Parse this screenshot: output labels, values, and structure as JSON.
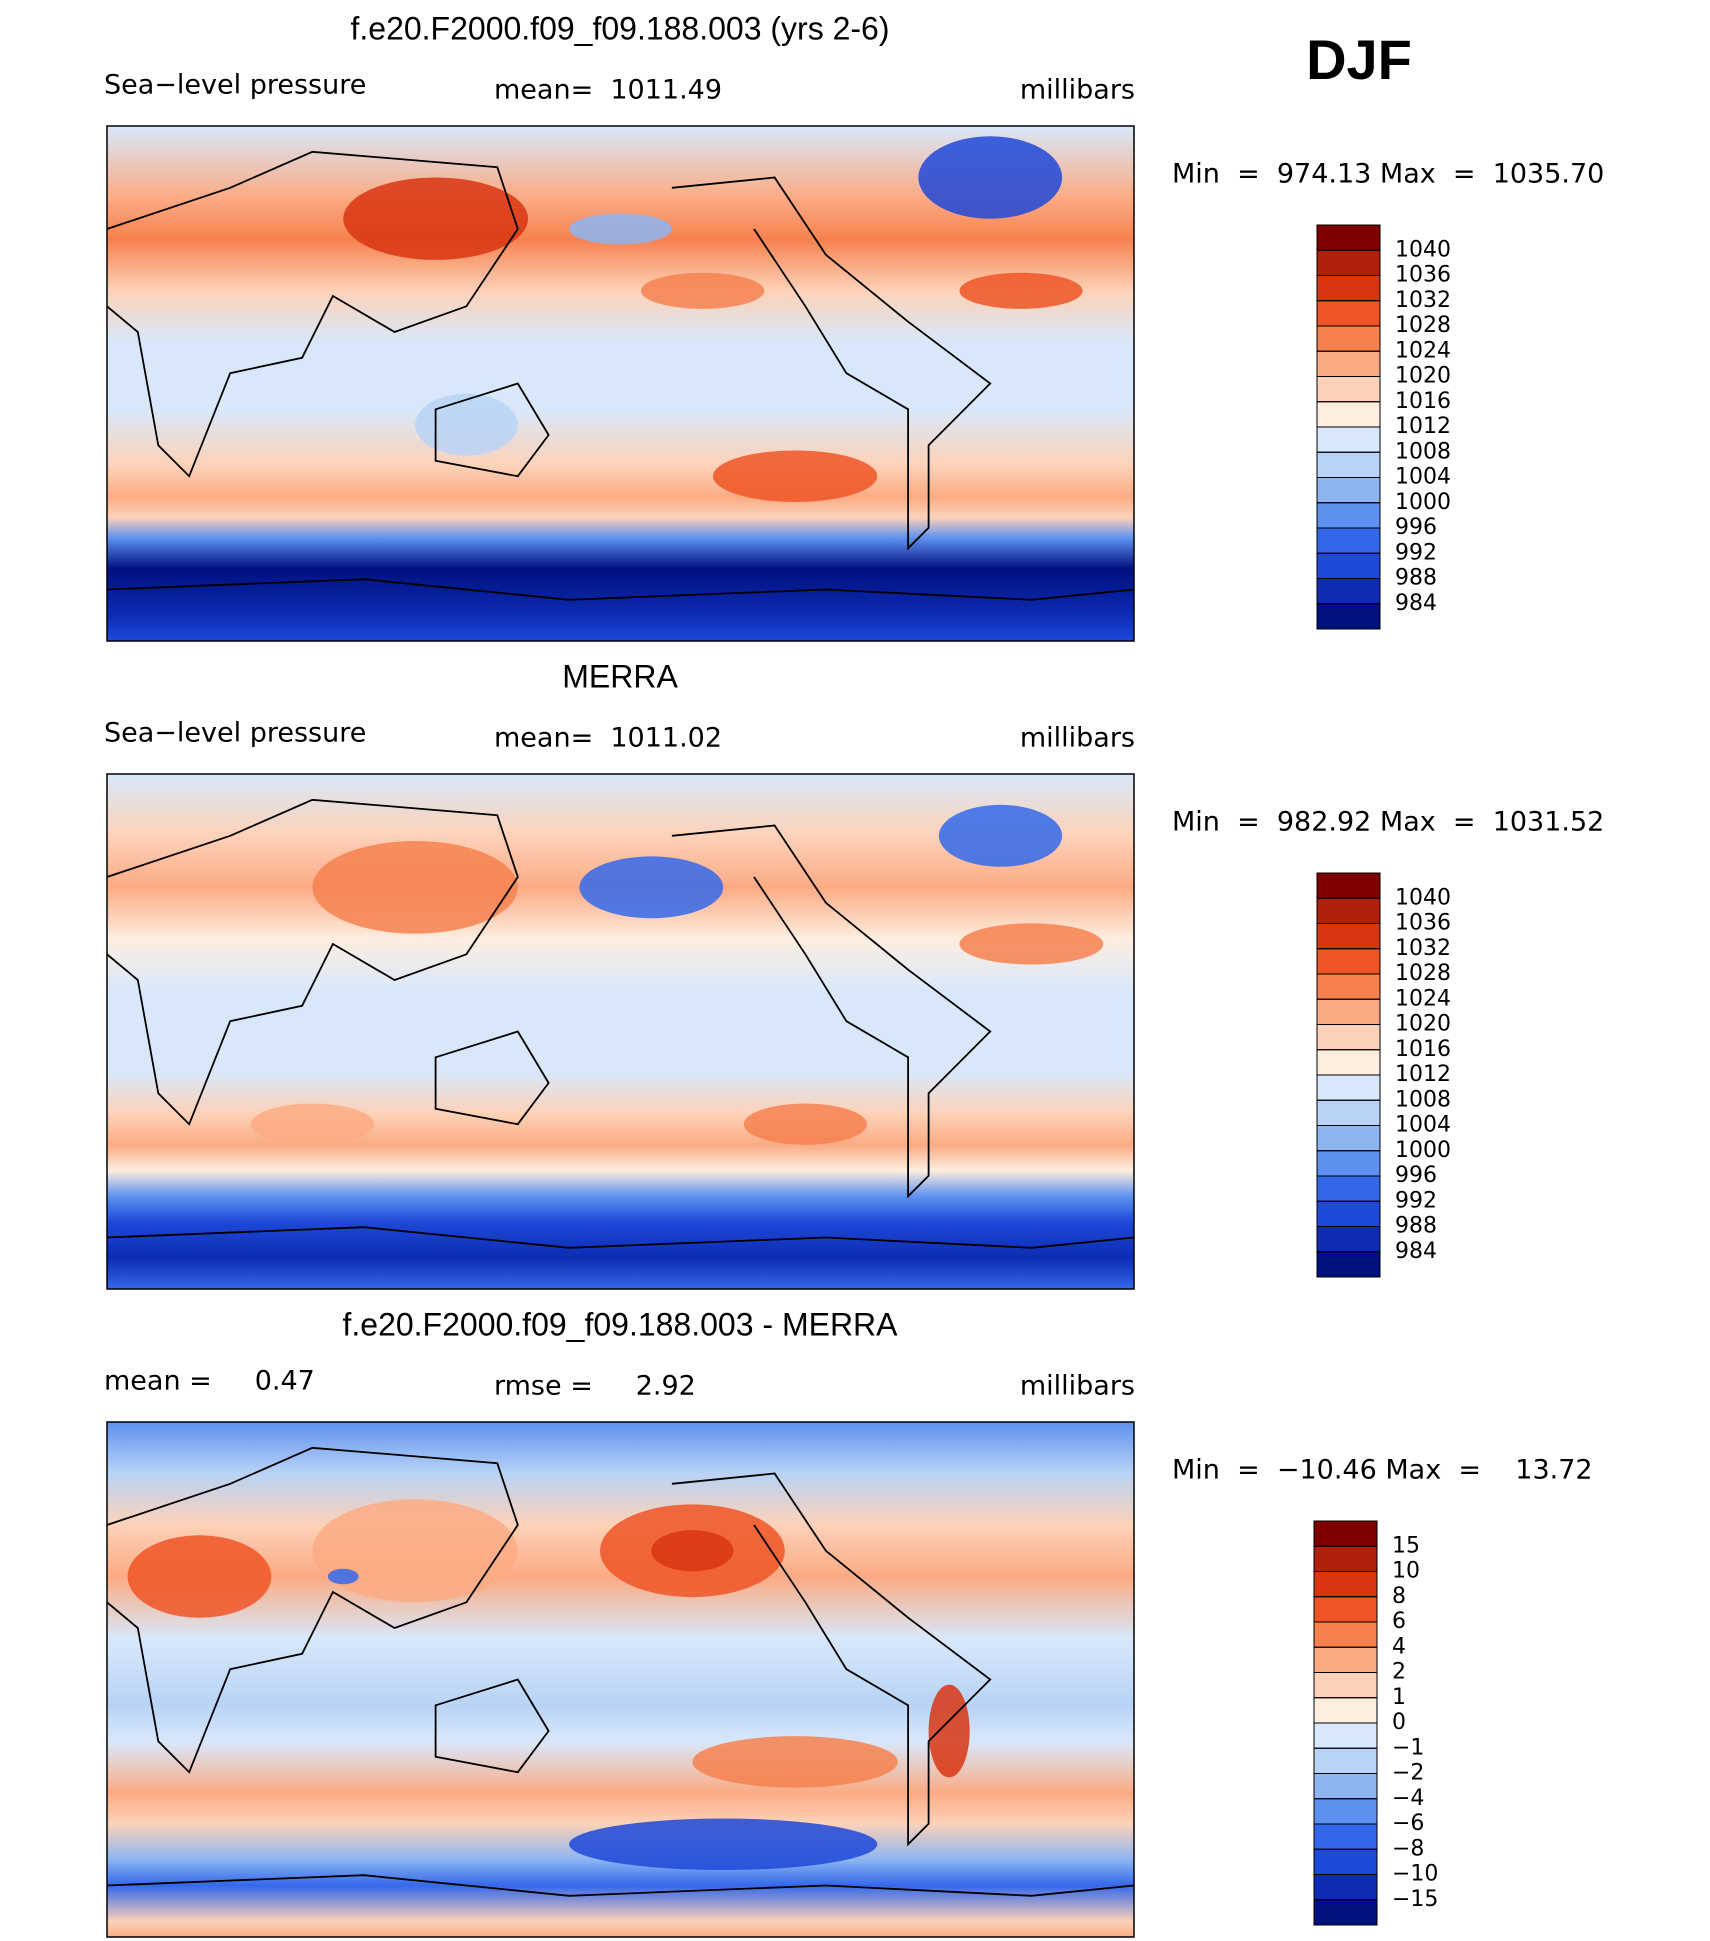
{
  "header": {
    "season": "DJF"
  },
  "panels": [
    {
      "title": "f.e20.F2000.f09_f09.188.003 (yrs 2-6)",
      "left": "Sea−level pressure",
      "center": "mean=  1011.49",
      "right": "millibars",
      "minmax": "Min  =  974.13 Max  =  1035.70",
      "colorbar": {
        "colors": [
          "#800000",
          "#b0200c",
          "#d83512",
          "#ef5526",
          "#f6814f",
          "#fbab84",
          "#fdd2b8",
          "#fdeedf",
          "#d8e8fa",
          "#b8d3f6",
          "#8db5f2",
          "#5e91ef",
          "#3468ea",
          "#1e48d8",
          "#0d2cb3",
          "#00107f"
        ],
        "levels": [
          1040,
          1036,
          1032,
          1028,
          1024,
          1020,
          1016,
          1012,
          1008,
          1004,
          1000,
          996,
          992,
          988,
          984
        ]
      }
    },
    {
      "title": "MERRA",
      "left": "Sea−level pressure",
      "center": "mean=  1011.02",
      "right": "millibars",
      "minmax": "Min  =  982.92 Max  =  1031.52",
      "colorbar": {
        "colors": [
          "#800000",
          "#b0200c",
          "#d83512",
          "#ef5526",
          "#f6814f",
          "#fbab84",
          "#fdd2b8",
          "#fdeedf",
          "#d8e8fa",
          "#b8d3f6",
          "#8db5f2",
          "#5e91ef",
          "#3468ea",
          "#1e48d8",
          "#0d2cb3",
          "#00107f"
        ],
        "levels": [
          1040,
          1036,
          1032,
          1028,
          1024,
          1020,
          1016,
          1012,
          1008,
          1004,
          1000,
          996,
          992,
          988,
          984
        ]
      }
    },
    {
      "title": "f.e20.F2000.f09_f09.188.003 - MERRA",
      "left": "mean =     0.47",
      "center": "rmse =     2.92",
      "right": "millibars",
      "minmax": "Min  =  −10.46 Max  =    13.72",
      "colorbar": {
        "colors": [
          "#800000",
          "#b0200c",
          "#d83512",
          "#ef5526",
          "#f6814f",
          "#fbab84",
          "#fdd2b8",
          "#fdeedf",
          "#d8e8fa",
          "#b8d3f6",
          "#8db5f2",
          "#5e91ef",
          "#3468ea",
          "#1e48d8",
          "#0d2cb3",
          "#00107f"
        ],
        "levels": [
          15,
          10,
          8,
          6,
          4,
          2,
          1,
          0,
          {
            "value": -1,
            "label": "−1"
          },
          {
            "value": -2,
            "label": "−2"
          },
          {
            "value": -4,
            "label": "−4"
          },
          {
            "value": -6,
            "label": "−6"
          },
          {
            "value": -8,
            "label": "−8"
          },
          {
            "value": -10,
            "label": "−10"
          },
          {
            "value": -15,
            "label": "−15"
          }
        ]
      }
    }
  ]
}
